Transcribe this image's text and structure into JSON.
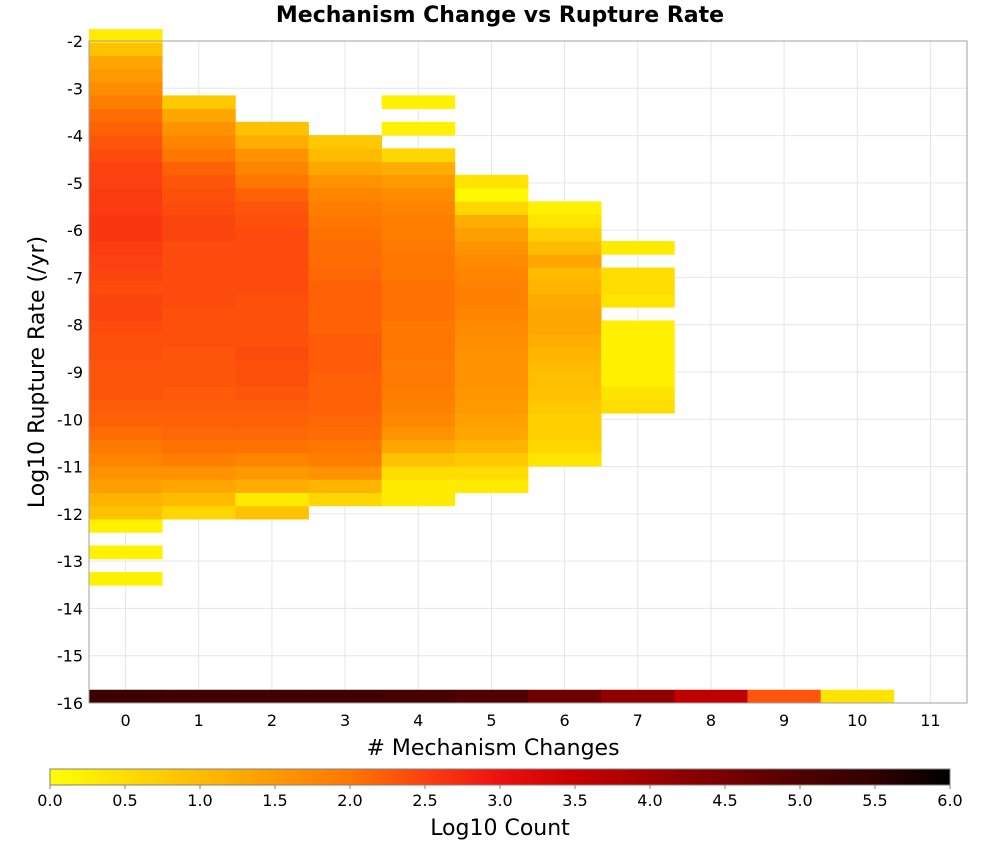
{
  "chart_data": {
    "type": "heatmap",
    "title": "Mechanism Change vs Rupture Rate",
    "xlabel": "# Mechanism Changes",
    "ylabel": "Log10 Rupture Rate (/yr)",
    "x_ticks": [
      "0",
      "1",
      "2",
      "3",
      "4",
      "5",
      "6",
      "7",
      "8",
      "9",
      "10",
      "11"
    ],
    "y_ticks": [
      "-2",
      "-3",
      "-4",
      "-5",
      "-6",
      "-7",
      "-8",
      "-9",
      "-10",
      "-11",
      "-12",
      "-13",
      "-14",
      "-15",
      "-16"
    ],
    "xlim": [
      -0.5,
      11.5
    ],
    "ylim": [
      -16,
      -2
    ],
    "bin_height": 0.28,
    "grid": true,
    "colorbar": {
      "label": "Log10 Count",
      "range": [
        0,
        6
      ],
      "ticks": [
        "0.0",
        "0.5",
        "1.0",
        "1.5",
        "2.0",
        "2.5",
        "3.0",
        "3.5",
        "4.0",
        "4.5",
        "5.0",
        "5.5",
        "6.0"
      ],
      "stops": [
        {
          "v": 0.0,
          "color": "#ffff00"
        },
        {
          "v": 1.0,
          "color": "#ffbb00"
        },
        {
          "v": 2.0,
          "color": "#ff7700"
        },
        {
          "v": 2.5,
          "color": "#fc4010"
        },
        {
          "v": 3.0,
          "color": "#ee1010"
        },
        {
          "v": 3.5,
          "color": "#c80000"
        },
        {
          "v": 4.0,
          "color": "#a00000"
        },
        {
          "v": 4.5,
          "color": "#780000"
        },
        {
          "v": 5.0,
          "color": "#500000"
        },
        {
          "v": 5.5,
          "color": "#300000"
        },
        {
          "v": 6.0,
          "color": "#000000"
        }
      ]
    },
    "cells": [
      {
        "x": 0,
        "y0": -12.39,
        "values": [
          0.2,
          0.9,
          1.1,
          1.4,
          1.6,
          1.8,
          1.95,
          2.1,
          2.2,
          2.25,
          2.3,
          2.3,
          2.3,
          2.35,
          2.35,
          2.4,
          2.45,
          2.45,
          2.4,
          2.45,
          2.5,
          2.55,
          2.6,
          2.6,
          2.55,
          2.55,
          2.5,
          2.5,
          2.4,
          2.3,
          2.2,
          2.1,
          1.9,
          1.7,
          1.5,
          1.3,
          0.9,
          0.3
        ]
      },
      {
        "x": 0,
        "y0": -12.95,
        "values": [
          0.2
        ]
      },
      {
        "x": 0,
        "y0": -13.51,
        "values": [
          0.2
        ]
      },
      {
        "x": 1,
        "y0": -12.11,
        "values": [
          0.6,
          1.0,
          1.3,
          1.6,
          1.9,
          2.05,
          2.15,
          2.2,
          2.25,
          2.25,
          2.3,
          2.3,
          2.3,
          2.35,
          2.35,
          2.35,
          2.4,
          2.4,
          2.4,
          2.4,
          2.4,
          2.45,
          2.45,
          2.4,
          2.35,
          2.3,
          2.2,
          2.0,
          1.8,
          1.6,
          1.3,
          0.8
        ]
      },
      {
        "x": 2,
        "y0": -12.11,
        "values": [
          0.9,
          0.3,
          1.2,
          1.5,
          1.8,
          2.05,
          2.15,
          2.2,
          2.25,
          2.3,
          2.35,
          2.35,
          2.4,
          2.35,
          2.35,
          2.35,
          2.35,
          2.4,
          2.4,
          2.4,
          2.4,
          2.4,
          2.35,
          2.3,
          2.2,
          2.0,
          1.8,
          1.6,
          1.2,
          0.9
        ]
      },
      {
        "x": 3,
        "y0": -11.83,
        "values": [
          0.6,
          1.1,
          1.6,
          1.9,
          2.0,
          2.1,
          2.15,
          2.2,
          2.2,
          2.2,
          2.25,
          2.25,
          2.25,
          2.2,
          2.2,
          2.2,
          2.2,
          2.15,
          2.1,
          2.1,
          2.05,
          2.0,
          1.9,
          1.8,
          1.6,
          1.3,
          1.0,
          0.8
        ]
      },
      {
        "x": 4,
        "y0": -11.83,
        "values": [
          0.3,
          0.3,
          0.5,
          0.9,
          1.3,
          1.6,
          1.75,
          1.85,
          1.9,
          1.95,
          1.95,
          2.0,
          2.0,
          2.0,
          2.05,
          2.05,
          2.05,
          2.0,
          2.0,
          1.95,
          1.9,
          1.9,
          1.8,
          1.7,
          1.5,
          1.2,
          0.6,
          null,
          0.2,
          null,
          0.2
        ]
      },
      {
        "x": 5,
        "y0": -11.55,
        "values": [
          0.3,
          0.5,
          0.8,
          1.1,
          1.3,
          1.4,
          1.5,
          1.55,
          1.6,
          1.6,
          1.6,
          1.65,
          1.7,
          1.8,
          1.85,
          1.85,
          1.8,
          1.7,
          1.6,
          1.4,
          1.2,
          0.6,
          0.1,
          0.4
        ]
      },
      {
        "x": 6,
        "y0": -10.99,
        "values": [
          0.4,
          0.6,
          0.7,
          0.7,
          0.8,
          0.9,
          0.95,
          1.0,
          1.1,
          1.2,
          1.3,
          1.3,
          1.25,
          1.1,
          1.0,
          1.3,
          1.0,
          0.7,
          0.4,
          0.2
        ]
      },
      {
        "x": 7,
        "y0": -9.87,
        "values": [
          0.5,
          0.4,
          0.2,
          0.2,
          0.2,
          0.2,
          0.2,
          null,
          0.4,
          0.5,
          0.5,
          null,
          0.3
        ]
      }
    ],
    "baseline_row": {
      "y0": -16,
      "x": [
        0,
        1,
        2,
        3,
        4,
        5,
        6,
        7,
        8,
        9,
        10
      ],
      "values": [
        5.3,
        5.2,
        5.2,
        5.2,
        5.15,
        5.0,
        4.6,
        4.2,
        3.6,
        2.3,
        0.4
      ]
    }
  }
}
